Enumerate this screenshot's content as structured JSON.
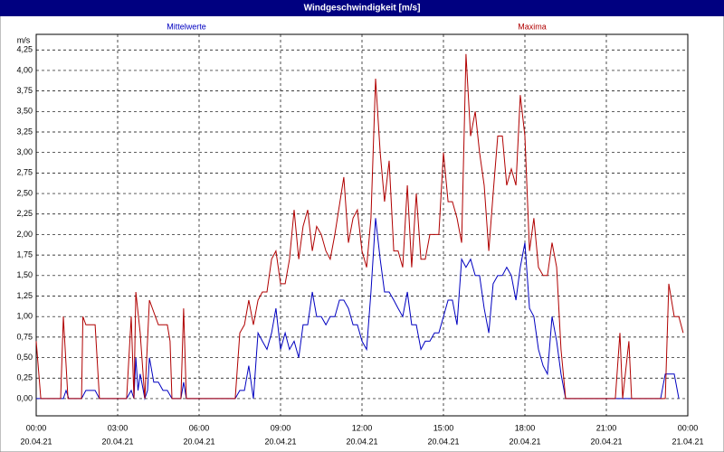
{
  "chart_data": {
    "type": "line",
    "title": "Windgeschwindigkeit [m/s]",
    "y_unit": "m/s",
    "grid": true,
    "xlim": [
      0,
      24
    ],
    "ylim": [
      -0.21,
      4.44
    ],
    "xticks": [
      {
        "value": 0,
        "label": "00:00"
      },
      {
        "value": 3,
        "label": "03:00"
      },
      {
        "value": 6,
        "label": "06:00"
      },
      {
        "value": 9,
        "label": "09:00"
      },
      {
        "value": 12,
        "label": "12:00"
      },
      {
        "value": 15,
        "label": "15:00"
      },
      {
        "value": 18,
        "label": "18:00"
      },
      {
        "value": 21,
        "label": "21:00"
      },
      {
        "value": 24,
        "label": "00:00"
      }
    ],
    "xtick_dates": [
      "20.04.21",
      "20.04.21",
      "20.04.21",
      "20.04.21",
      "20.04.21",
      "20.04.21",
      "20.04.21",
      "20.04.21",
      "21.04.21"
    ],
    "yticks": [
      {
        "value": 0,
        "label": "0,00"
      },
      {
        "value": 0.25,
        "label": "0,25"
      },
      {
        "value": 0.5,
        "label": "0,50"
      },
      {
        "value": 0.75,
        "label": "0,75"
      },
      {
        "value": 1,
        "label": "1,00"
      },
      {
        "value": 1.25,
        "label": "1,25"
      },
      {
        "value": 1.5,
        "label": "1,50"
      },
      {
        "value": 1.75,
        "label": "1,75"
      },
      {
        "value": 2,
        "label": "2,00"
      },
      {
        "value": 2.25,
        "label": "2,25"
      },
      {
        "value": 2.5,
        "label": "2,50"
      },
      {
        "value": 2.75,
        "label": "2,75"
      },
      {
        "value": 3,
        "label": "3,00"
      },
      {
        "value": 3.25,
        "label": "3,25"
      },
      {
        "value": 3.5,
        "label": "3,50"
      },
      {
        "value": 3.75,
        "label": "3,75"
      },
      {
        "value": 4,
        "label": "4,00"
      },
      {
        "value": 4.25,
        "label": "4,25"
      }
    ],
    "series": [
      {
        "name": "Mittelwerte",
        "color": "#0000c0",
        "x": [
          0,
          1.0,
          1.1,
          1.2,
          1.67,
          1.83,
          2.17,
          2.33,
          3.33,
          3.5,
          3.6,
          3.67,
          3.75,
          3.83,
          4.0,
          4.1,
          4.17,
          4.33,
          4.5,
          4.67,
          4.83,
          5.0,
          5.33,
          5.43,
          5.53,
          7.33,
          7.5,
          7.67,
          7.83,
          8.0,
          8.17,
          8.33,
          8.5,
          8.67,
          8.83,
          9.0,
          9.17,
          9.33,
          9.5,
          9.67,
          9.83,
          10.0,
          10.17,
          10.33,
          10.5,
          10.67,
          10.83,
          11.0,
          11.17,
          11.33,
          11.5,
          11.67,
          11.83,
          12.0,
          12.17,
          12.33,
          12.5,
          12.67,
          12.83,
          13.0,
          13.17,
          13.33,
          13.5,
          13.67,
          13.83,
          14.0,
          14.17,
          14.33,
          14.5,
          14.67,
          14.83,
          15.0,
          15.17,
          15.33,
          15.5,
          15.67,
          15.83,
          16.0,
          16.17,
          16.33,
          16.5,
          16.67,
          16.83,
          17.0,
          17.17,
          17.33,
          17.5,
          17.67,
          17.83,
          18.0,
          18.17,
          18.33,
          18.5,
          18.67,
          18.83,
          19.0,
          19.17,
          19.33,
          19.5,
          23.0,
          23.17,
          23.5,
          23.67
        ],
        "values": [
          0,
          0,
          0.1,
          0,
          0,
          0.1,
          0.1,
          0,
          0,
          0.1,
          0,
          0.5,
          0.1,
          0.3,
          0,
          0.1,
          0.5,
          0.2,
          0.2,
          0.1,
          0.1,
          0,
          0,
          0.2,
          0,
          0,
          0.1,
          0.1,
          0.4,
          0,
          0.8,
          0.7,
          0.6,
          0.8,
          1.1,
          0.6,
          0.8,
          0.6,
          0.7,
          0.5,
          0.9,
          0.9,
          1.3,
          1.0,
          1.0,
          0.9,
          1.0,
          1.0,
          1.2,
          1.2,
          1.1,
          0.9,
          0.9,
          0.7,
          0.6,
          1.3,
          2.2,
          1.7,
          1.3,
          1.3,
          1.2,
          1.1,
          1.0,
          1.3,
          0.9,
          0.9,
          0.6,
          0.7,
          0.7,
          0.8,
          0.8,
          1.0,
          1.2,
          1.2,
          0.9,
          1.7,
          1.6,
          1.7,
          1.5,
          1.5,
          1.1,
          0.8,
          1.4,
          1.5,
          1.5,
          1.6,
          1.5,
          1.2,
          1.6,
          1.9,
          1.1,
          1.0,
          0.6,
          0.4,
          0.3,
          1.0,
          0.7,
          0.3,
          0,
          0,
          0.3,
          0.3,
          0
        ]
      },
      {
        "name": "Maxima",
        "color": "#b00000",
        "x": [
          0,
          0.17,
          0.9,
          1.0,
          1.17,
          1.67,
          1.72,
          1.83,
          2.17,
          2.33,
          3.33,
          3.5,
          3.6,
          3.67,
          3.83,
          4.0,
          4.17,
          4.5,
          4.83,
          4.93,
          5.0,
          5.33,
          5.43,
          5.53,
          7.33,
          7.5,
          7.67,
          7.83,
          8.0,
          8.17,
          8.33,
          8.5,
          8.67,
          8.83,
          9.0,
          9.17,
          9.33,
          9.5,
          9.67,
          9.83,
          10.0,
          10.17,
          10.33,
          10.5,
          10.67,
          10.83,
          11.0,
          11.33,
          11.5,
          11.67,
          11.83,
          12.0,
          12.17,
          12.33,
          12.5,
          12.67,
          12.83,
          13.0,
          13.17,
          13.33,
          13.5,
          13.67,
          13.83,
          14.0,
          14.17,
          14.33,
          14.5,
          14.67,
          14.83,
          15.0,
          15.17,
          15.33,
          15.5,
          15.67,
          15.83,
          16.0,
          16.17,
          16.33,
          16.5,
          16.67,
          16.83,
          17.0,
          17.17,
          17.33,
          17.5,
          17.67,
          17.83,
          18.0,
          18.17,
          18.33,
          18.5,
          18.67,
          18.83,
          19.0,
          19.17,
          19.33,
          19.5,
          21.33,
          21.5,
          21.6,
          21.83,
          21.93,
          23.17,
          23.3,
          23.5,
          23.67,
          23.83
        ],
        "values": [
          0.7,
          0,
          0,
          1.0,
          0,
          0,
          1.0,
          0.9,
          0.9,
          0,
          0,
          1.0,
          0,
          1.3,
          0.8,
          0,
          1.2,
          0.9,
          0.9,
          0.7,
          0,
          0,
          1.1,
          0,
          0,
          0.8,
          0.9,
          1.2,
          0.9,
          1.2,
          1.3,
          1.3,
          1.7,
          1.8,
          1.4,
          1.4,
          1.7,
          2.3,
          1.7,
          2.1,
          2.3,
          1.8,
          2.1,
          2.0,
          1.8,
          1.7,
          2.0,
          2.7,
          1.9,
          2.2,
          2.3,
          1.8,
          1.6,
          2.2,
          3.9,
          3.0,
          2.4,
          2.9,
          1.8,
          1.8,
          1.6,
          2.6,
          1.6,
          2.5,
          1.7,
          1.7,
          2.0,
          2.0,
          2.0,
          3.0,
          2.4,
          2.4,
          2.2,
          1.9,
          4.2,
          3.2,
          3.5,
          3.0,
          2.6,
          1.8,
          2.5,
          3.2,
          3.2,
          2.6,
          2.8,
          2.6,
          3.7,
          3.2,
          1.8,
          2.2,
          1.6,
          1.5,
          1.5,
          1.9,
          1.6,
          0.6,
          0,
          0,
          0.8,
          0,
          0.7,
          0,
          0,
          1.4,
          1.0,
          1.0,
          0.8
        ]
      }
    ]
  }
}
